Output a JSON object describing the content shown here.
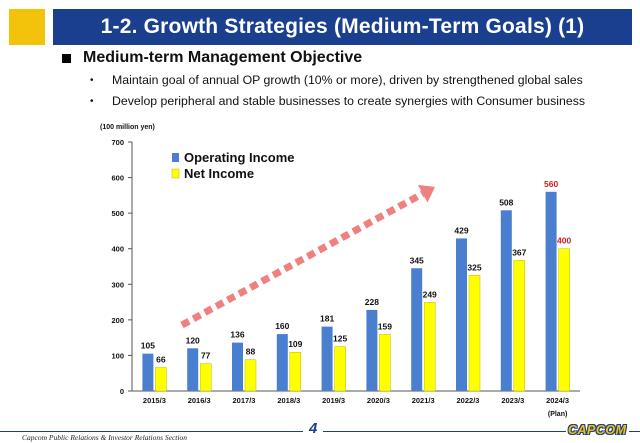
{
  "header": {
    "title": "1-2. Growth Strategies (Medium-Term Goals) (1)"
  },
  "section": {
    "heading": "Medium-term Management Objective",
    "bullets": [
      "Maintain goal of annual OP growth (10% or more), driven by strengthened global sales",
      "Develop peripheral and stable businesses to create synergies with Consumer business"
    ]
  },
  "chart_data": {
    "type": "bar",
    "unit_label": "(100 million yen)",
    "categories": [
      "2015/3",
      "2016/3",
      "2017/3",
      "2018/3",
      "2019/3",
      "2020/3",
      "2021/3",
      "2022/3",
      "2023/3",
      "2024/3"
    ],
    "category_note": "(Plan)",
    "series": [
      {
        "name": "Operating Income",
        "color": "#4a7fd0",
        "values": [
          105,
          120,
          136,
          160,
          181,
          228,
          345,
          429,
          508,
          560
        ]
      },
      {
        "name": "Net Income",
        "color": "#ffff00",
        "values": [
          66,
          77,
          88,
          109,
          125,
          159,
          249,
          325,
          367,
          400
        ]
      }
    ],
    "yticks": [
      0,
      100,
      200,
      300,
      400,
      500,
      600,
      700
    ],
    "ylim": [
      0,
      700
    ],
    "grid": false,
    "legend_position": "top-left",
    "plan_label_color": "#cc1f1f",
    "arrow_color": "#f08080"
  },
  "footer": {
    "text": "Capcom Public Relations & Investor Relations Section",
    "page": "4",
    "logo": "CAPCOM"
  }
}
